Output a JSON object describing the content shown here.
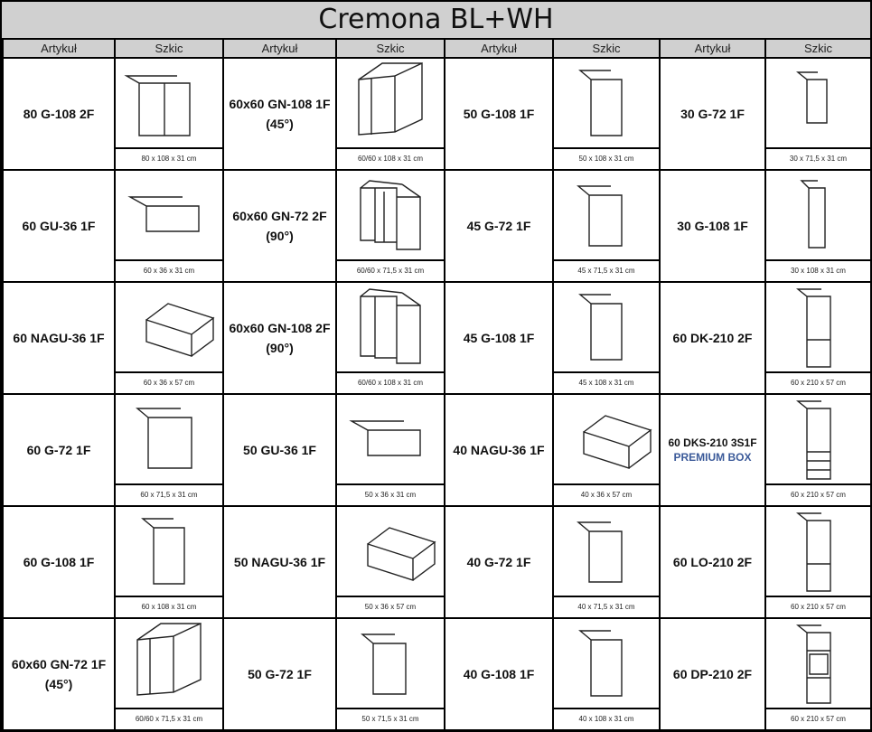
{
  "title": "Cremona BL+WH",
  "headers": [
    "Artykuł",
    "Szkic",
    "Artykuł",
    "Szkic",
    "Artykuł",
    "Szkic",
    "Artykuł",
    "Szkic"
  ],
  "rows": [
    [
      {
        "code": "80 G-108 2F",
        "dim": "80 x 108 x 31 cm",
        "icon": "wall-cabinet-2-door"
      },
      {
        "code": "60x60 GN-108 1F",
        "code2": "(45°)",
        "dim": "60/60 x 108 x 31 cm",
        "icon": "corner-cabinet-45"
      },
      {
        "code": "50 G-108 1F",
        "dim": "50 x 108 x 31 cm",
        "icon": "tall-wall-cabinet"
      },
      {
        "code": "30 G-72 1F",
        "dim": "30 x 71,5 x 31 cm",
        "icon": "narrow-wall-cabinet"
      }
    ],
    [
      {
        "code": "60 GU-36 1F",
        "dim": "60 x 36 x 31 cm",
        "icon": "low-wall-cabinet"
      },
      {
        "code": "60x60 GN-72 2F",
        "code2": "(90°)",
        "dim": "60/60 x 71,5 x 31 cm",
        "icon": "corner-cabinet-90"
      },
      {
        "code": "45 G-72 1F",
        "dim": "45 x 71,5 x 31 cm",
        "icon": "wall-cabinet"
      },
      {
        "code": "30 G-108 1F",
        "dim": "30 x 108 x 31 cm",
        "icon": "narrow-tall-wall-cabinet"
      }
    ],
    [
      {
        "code": "60 NAGU-36 1F",
        "dim": "60 x 36 x 57 cm",
        "icon": "deep-low-cabinet"
      },
      {
        "code": "60x60 GN-108 2F",
        "code2": "(90°)",
        "dim": "60/60 x 108 x 31 cm",
        "icon": "corner-cabinet-90-tall"
      },
      {
        "code": "45 G-108 1F",
        "dim": "45 x 108 x 31 cm",
        "icon": "tall-wall-cabinet"
      },
      {
        "code": "60 DK-210 2F",
        "dim": "60 x 210 x 57 cm",
        "icon": "fridge-column"
      }
    ],
    [
      {
        "code": "60 G-72 1F",
        "dim": "60 x 71,5 x 31 cm",
        "icon": "square-wall-cabinet"
      },
      {
        "code": "50 GU-36 1F",
        "dim": "50 x 36 x 31 cm",
        "icon": "low-wall-cabinet"
      },
      {
        "code": "40 NAGU-36 1F",
        "dim": "40 x 36 x 57 cm",
        "icon": "deep-low-cabinet"
      },
      {
        "code": "60 DKS-210 3S1F",
        "code2": "PREMIUM BOX",
        "dim": "60 x 210 x 57 cm",
        "icon": "drawer-column"
      }
    ],
    [
      {
        "code": "60 G-108 1F",
        "dim": "60 x 108 x 31 cm",
        "icon": "tall-wall-cabinet"
      },
      {
        "code": "50 NAGU-36 1F",
        "dim": "50 x 36 x 57 cm",
        "icon": "deep-low-cabinet"
      },
      {
        "code": "40 G-72 1F",
        "dim": "40 x 71,5 x 31 cm",
        "icon": "wall-cabinet"
      },
      {
        "code": "60 LO-210 2F",
        "dim": "60 x 210 x 57 cm",
        "icon": "fridge-column"
      }
    ],
    [
      {
        "code": "60x60 GN-72 1F",
        "code2": "(45°)",
        "dim": "60/60 x 71,5 x 31 cm",
        "icon": "corner-cabinet-45"
      },
      {
        "code": "50 G-72 1F",
        "dim": "50 x 71,5 x 31 cm",
        "icon": "wall-cabinet"
      },
      {
        "code": "40 G-108 1F",
        "dim": "40 x 108 x 31 cm",
        "icon": "tall-wall-cabinet"
      },
      {
        "code": "60 DP-210 2F",
        "dim": "60 x 210 x 57 cm",
        "icon": "oven-column"
      }
    ]
  ],
  "colors": {
    "header_bg": "#d0d0d0",
    "accent": "#3b5a99"
  }
}
